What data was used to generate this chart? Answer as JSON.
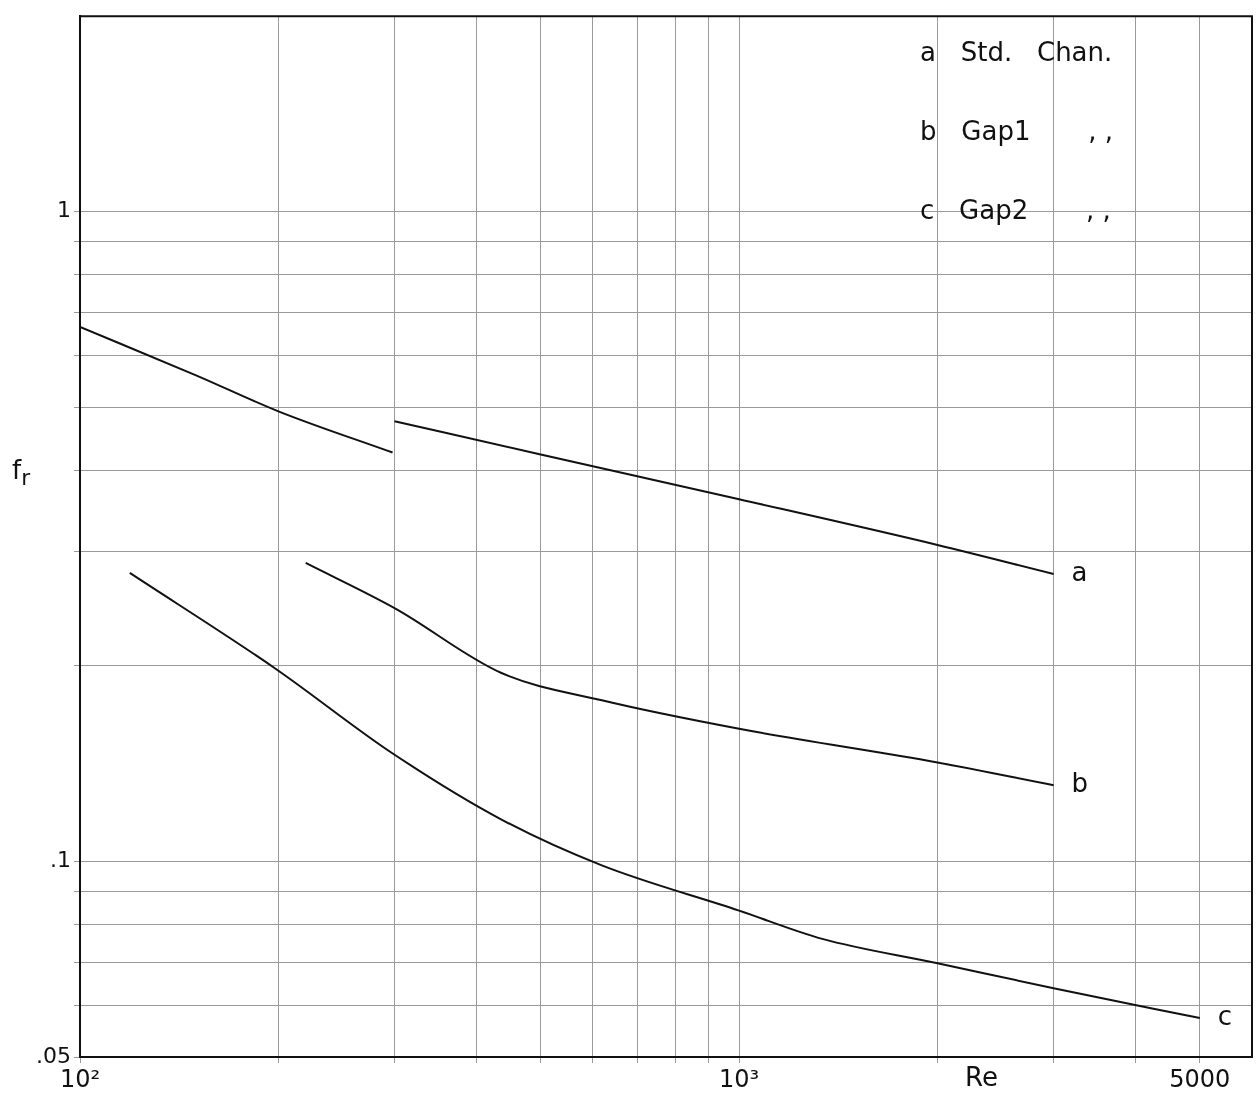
{
  "chart_data": {
    "type": "line",
    "xlabel": "Re",
    "ylabel": "f$_{r}$",
    "log": "xy",
    "xlim": [
      100,
      6000
    ],
    "ylim": [
      0.05,
      2
    ],
    "xticks": [
      {
        "value": 100,
        "label": "10²"
      },
      {
        "value": 200,
        "label": null
      },
      {
        "value": 300,
        "label": null
      },
      {
        "value": 400,
        "label": null
      },
      {
        "value": 500,
        "label": null
      },
      {
        "value": 600,
        "label": null
      },
      {
        "value": 700,
        "label": null
      },
      {
        "value": 800,
        "label": null
      },
      {
        "value": 900,
        "label": null
      },
      {
        "value": 1000,
        "label": "10³"
      },
      {
        "value": 2000,
        "label": null
      },
      {
        "value": 3000,
        "label": null
      },
      {
        "value": 4000,
        "label": null
      },
      {
        "value": 5000,
        "label": "5000"
      }
    ],
    "yticks": [
      {
        "value": 0.05,
        "label": ".05"
      },
      {
        "value": 0.06,
        "label": null
      },
      {
        "value": 0.07,
        "label": null
      },
      {
        "value": 0.08,
        "label": null
      },
      {
        "value": 0.09,
        "label": null
      },
      {
        "value": 0.1,
        "label": ".1"
      },
      {
        "value": 0.2,
        "label": null
      },
      {
        "value": 0.3,
        "label": null
      },
      {
        "value": 0.4,
        "label": null
      },
      {
        "value": 0.5,
        "label": null
      },
      {
        "value": 0.6,
        "label": null
      },
      {
        "value": 0.7,
        "label": null
      },
      {
        "value": 0.8,
        "label": null
      },
      {
        "value": 0.9,
        "label": null
      },
      {
        "value": 1,
        "label": "1"
      }
    ],
    "grid": true,
    "legend": false,
    "marker": "none",
    "line_style": "solid",
    "series": [
      {
        "name": "a",
        "color": "#111111",
        "x": [
          100,
          150,
          200,
          298,
          299,
          300,
          500,
          1000,
          2000,
          3000
        ],
        "values": [
          0.665,
          0.56,
          0.493,
          0.426,
          null,
          0.476,
          0.423,
          0.361,
          0.307,
          0.277
        ]
      },
      {
        "name": "b",
        "color": "#111111",
        "x": [
          220,
          301,
          436,
          619,
          1000,
          2000,
          3000
        ],
        "values": [
          0.288,
          0.245,
          0.195,
          0.177,
          0.16,
          0.142,
          0.131
        ]
      },
      {
        "name": "c",
        "color": "#111111",
        "x": [
          119,
          198,
          297,
          436,
          619,
          1000,
          1337,
          2000,
          3000,
          5000
        ],
        "values": [
          0.278,
          0.198,
          0.147,
          0.116,
          0.0986,
          0.084,
          0.076,
          0.0697,
          0.0638,
          0.0574
        ]
      }
    ],
    "annotations": [
      "a   Std.   Chan.",
      "b   Gap1       , ,",
      "c   Gap2       , ,"
    ]
  }
}
